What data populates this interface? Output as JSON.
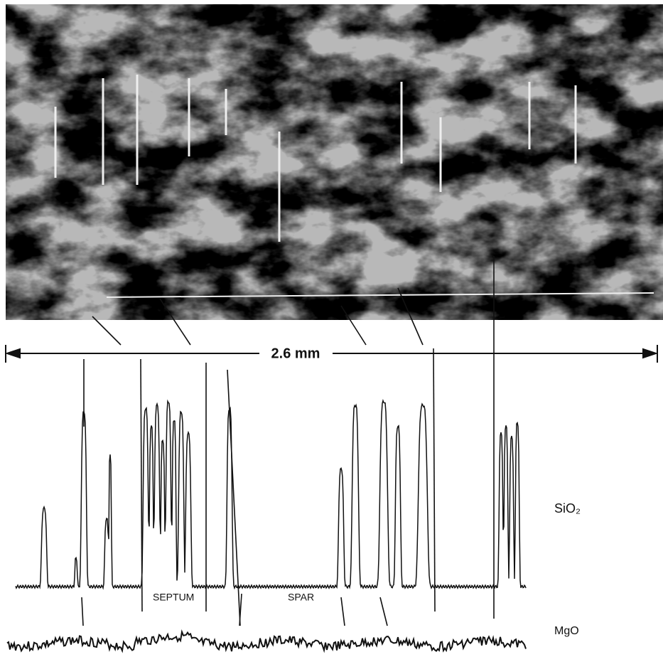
{
  "figure": {
    "scale_label": "2.6 mm",
    "trace_labels": {
      "sio2": "SiO₂",
      "mgo": "MgO"
    },
    "region_labels": {
      "septum": "SEPTUM",
      "spar": "SPAR"
    }
  }
}
